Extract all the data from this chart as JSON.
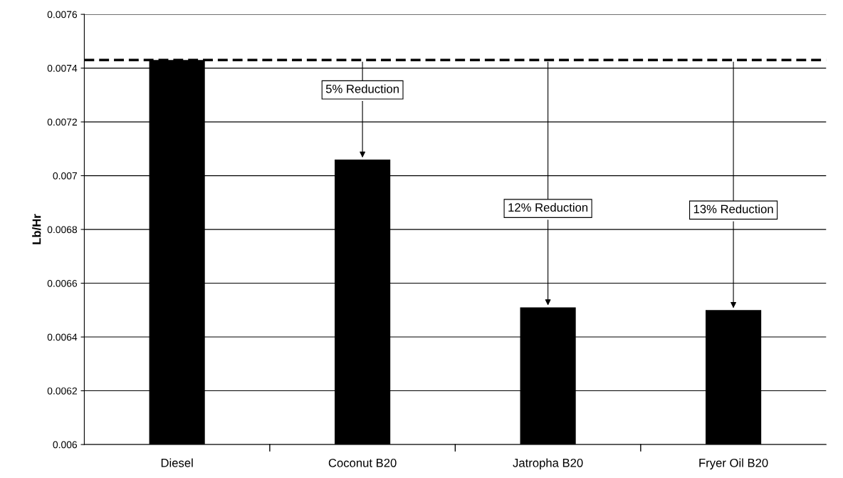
{
  "chart_data": {
    "type": "bar",
    "ylabel": "Lb/Hr",
    "categories": [
      "Diesel",
      "Coconut B20",
      "Jatropha B20",
      "Fryer Oil B20"
    ],
    "values": [
      0.00743,
      0.00706,
      0.00651,
      0.0065
    ],
    "color": "#000000",
    "ylim": [
      0.006,
      0.0076
    ],
    "yticks": [
      0.006,
      0.0062,
      0.0064,
      0.0066,
      0.0068,
      0.007,
      0.0072,
      0.0074,
      0.0076
    ],
    "grid": "y",
    "ref_lines": [
      {
        "axis": "y",
        "value": 0.00743,
        "color": "#000000",
        "line_style": "dashed"
      }
    ],
    "annotations": [
      {
        "text": "5% Reduction",
        "x": "Coconut B20",
        "y": 0.00706
      },
      {
        "text": "12% Reduction",
        "x": "Jatropha B20",
        "y": 0.00651
      },
      {
        "text": "13% Reduction",
        "x": "Fryer Oil B20",
        "y": 0.0065
      }
    ]
  }
}
